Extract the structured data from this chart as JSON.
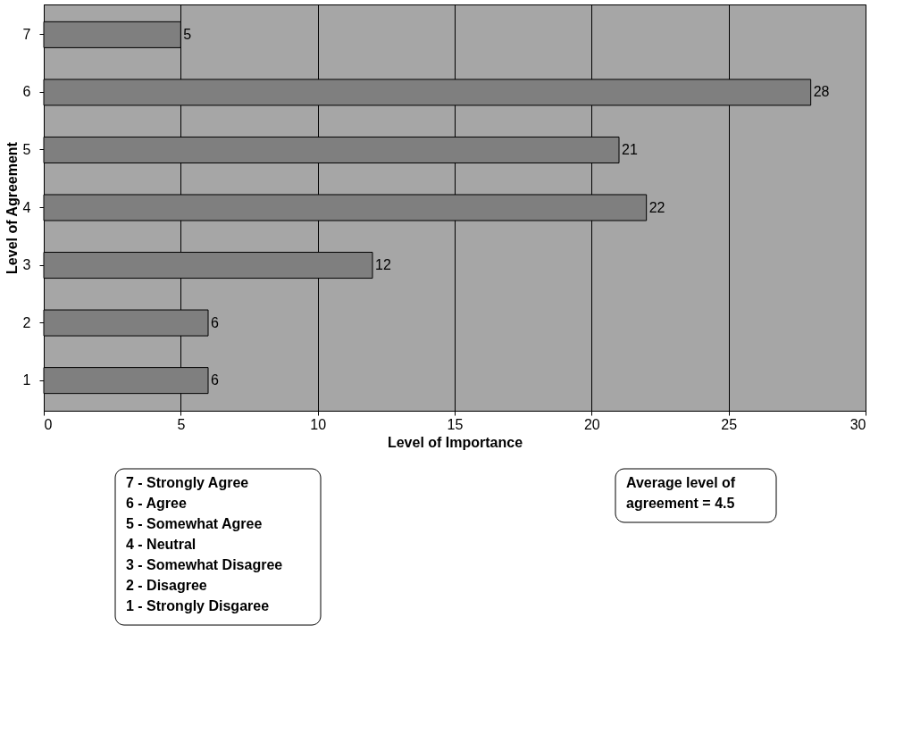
{
  "chart_data": {
    "type": "bar",
    "orientation": "horizontal",
    "categories": [
      "7",
      "6",
      "5",
      "4",
      "3",
      "2",
      "1"
    ],
    "values": [
      5,
      28,
      21,
      22,
      12,
      6,
      6
    ],
    "color": "#7f7f7f",
    "xlim": [
      0,
      30
    ],
    "xticks": [
      0,
      5,
      10,
      15,
      20,
      25,
      30
    ],
    "xlabel": "Level of Importance",
    "ylabel": "Level of Agreement",
    "grid": "x",
    "data_labels": true,
    "annotations": [
      "7 - Strongly Agree\n6 - Agree\n5 - Somewhat Agree\n4 - Neutral\n3 - Somewhat Disagree\n2 - Disagree\n1 - Strongly Disgaree",
      "Average level of\nagreement = 4.5"
    ]
  }
}
